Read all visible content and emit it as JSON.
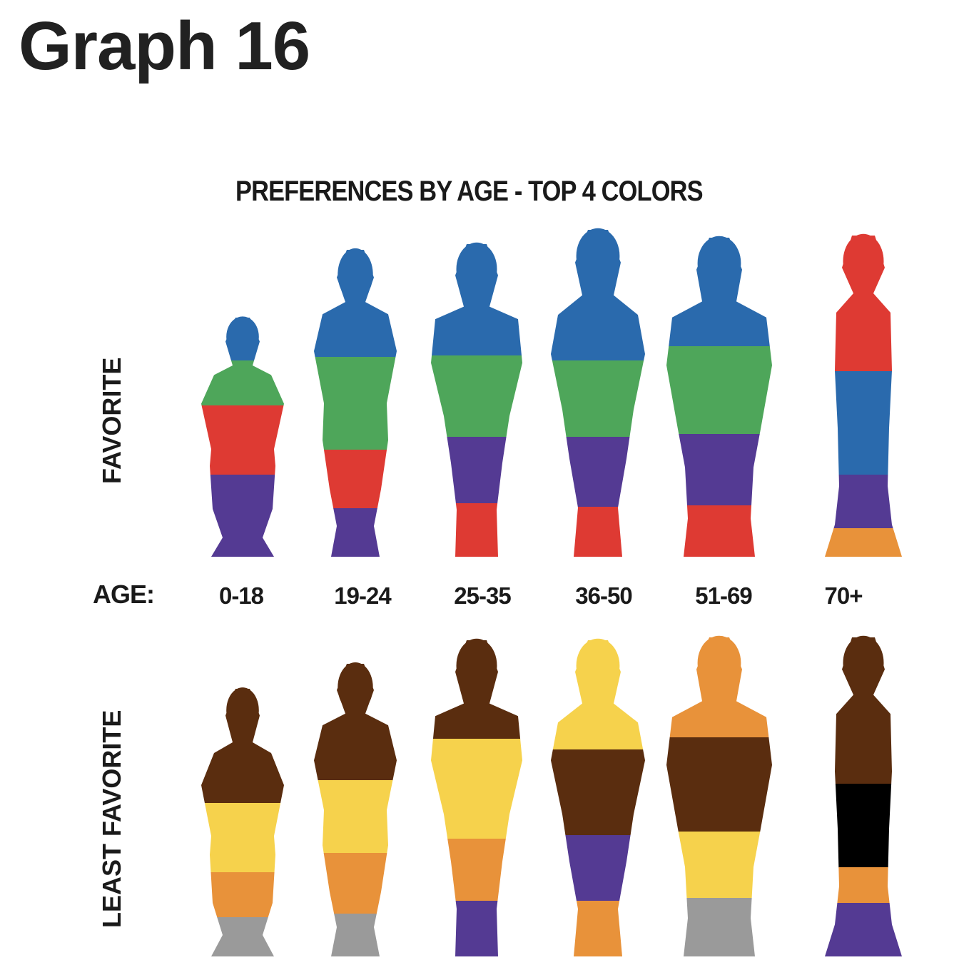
{
  "page": {
    "title": "Graph 16"
  },
  "chart_data": {
    "type": "pictograph",
    "title": "PREFERENCES BY AGE - TOP 4 COLORS",
    "age_axis_label": "AGE:",
    "age_groups": [
      "0-18",
      "19-24",
      "25-35",
      "36-50",
      "51-69",
      "70+"
    ],
    "colors": {
      "Blue": "#2a6aad",
      "Green": "#4ea65a",
      "Red": "#de3a33",
      "Purple": "#543a93",
      "Orange": "#e8923a",
      "Brown": "#5a2d0f",
      "Yellow": "#f6d24c",
      "Gray": "#9a9a9a",
      "Black": "#000000"
    },
    "rows": [
      {
        "label": "FAVORITE",
        "ranking": [
          [
            "Blue",
            "Green",
            "Red",
            "Purple"
          ],
          [
            "Blue",
            "Green",
            "Red",
            "Purple"
          ],
          [
            "Blue",
            "Green",
            "Purple",
            "Red"
          ],
          [
            "Blue",
            "Green",
            "Purple",
            "Red"
          ],
          [
            "Blue",
            "Green",
            "Purple",
            "Red"
          ],
          [
            "Red",
            "Blue",
            "Purple",
            "Orange"
          ]
        ]
      },
      {
        "label": "LEAST FAVORITE",
        "ranking": [
          [
            "Brown",
            "Yellow",
            "Orange",
            "Gray"
          ],
          [
            "Brown",
            "Yellow",
            "Orange",
            "Gray"
          ],
          [
            "Brown",
            "Yellow",
            "Orange",
            "Purple"
          ],
          [
            "Yellow",
            "Brown",
            "Purple",
            "Orange"
          ],
          [
            "Orange",
            "Brown",
            "Yellow",
            "Gray"
          ],
          [
            "Brown",
            "Black",
            "Orange",
            "Purple"
          ]
        ]
      }
    ]
  }
}
